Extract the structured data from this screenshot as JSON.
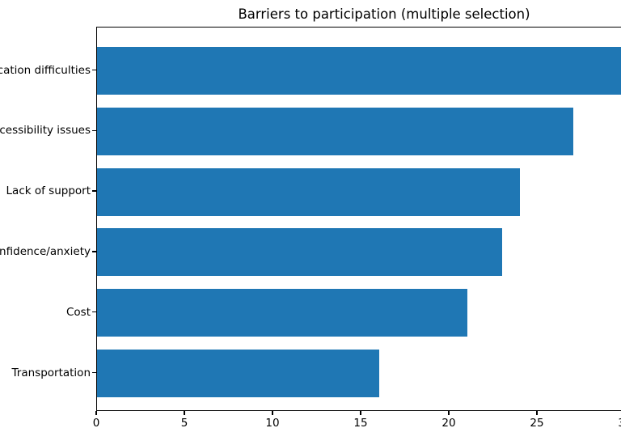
{
  "title": "Barriers to participation (multiple selection)",
  "chart_data": {
    "type": "bar",
    "orientation": "horizontal",
    "title": "Barriers to participation (multiple selection)",
    "categories": [
      "Communication difficulties",
      "Accessibility issues",
      "Lack of support",
      "Confidence/anxiety",
      "Cost",
      "Transportation"
    ],
    "values": [
      30,
      27,
      24,
      23,
      21,
      16
    ],
    "xlabel": "",
    "ylabel": "",
    "xlim": [
      0,
      31.5
    ],
    "x_ticks": [
      0,
      5,
      10,
      15,
      20,
      25,
      30
    ],
    "grid": false,
    "legend": "none",
    "bar_color": "#1f77b4",
    "spine_color": "#000000",
    "text_color": "#000000",
    "background_color": "#ffffff"
  }
}
